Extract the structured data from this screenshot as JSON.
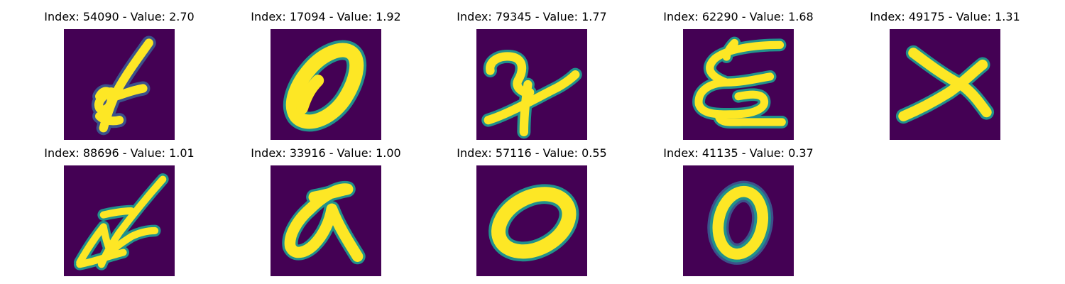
{
  "colors": {
    "background": "#440154",
    "stroke": "#fde725",
    "edge": "#21918c",
    "soft_edge": "#3b528b"
  },
  "panels": [
    {
      "title": "Index: 54090 - Value: 2.70",
      "glyph": "glyph-54090"
    },
    {
      "title": "Index: 17094 - Value: 1.92",
      "glyph": "glyph-17094"
    },
    {
      "title": "Index: 79345 - Value: 1.77",
      "glyph": "glyph-79345"
    },
    {
      "title": "Index: 62290 - Value: 1.68",
      "glyph": "glyph-62290"
    },
    {
      "title": "Index: 49175 - Value: 1.31",
      "glyph": "glyph-49175"
    },
    {
      "title": "Index: 88696 - Value: 1.01",
      "glyph": "glyph-88696"
    },
    {
      "title": "Index: 33916 - Value: 1.00",
      "glyph": "glyph-33916"
    },
    {
      "title": "Index: 57116 - Value: 0.55",
      "glyph": "glyph-57116"
    },
    {
      "title": "Index: 41135 - Value: 0.37",
      "glyph": "glyph-41135"
    }
  ]
}
